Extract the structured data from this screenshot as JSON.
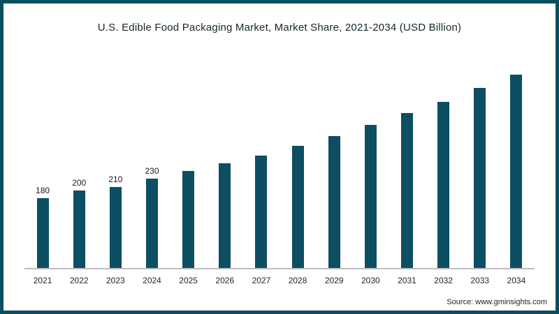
{
  "frame": {
    "border_color": "#0d4e63",
    "background": "#ffffff"
  },
  "chart": {
    "title": "U.S. Edible Food Packaging Market, Market Share, 2021-2034 (USD Billion)"
  },
  "source": "Source: www.gminsights.com",
  "chart_data": {
    "type": "bar",
    "title": "U.S. Edible Food Packaging Market, Market Share, 2021-2034 (USD Billion)",
    "unit": "USD Billion",
    "categories": [
      "2021",
      "2022",
      "2023",
      "2024",
      "2025",
      "2026",
      "2027",
      "2028",
      "2029",
      "2030",
      "2031",
      "2032",
      "2033",
      "2034"
    ],
    "values": [
      180,
      200,
      210,
      230,
      250,
      270,
      290,
      315,
      340,
      370,
      400,
      430,
      465,
      500
    ],
    "data_labels_visible_for": [
      "2021",
      "2022",
      "2023",
      "2024"
    ],
    "bar_color": "#0d4e63",
    "xlabel": "",
    "ylabel": "",
    "ylim": [
      0,
      550
    ],
    "grid": false,
    "legend": "none"
  }
}
